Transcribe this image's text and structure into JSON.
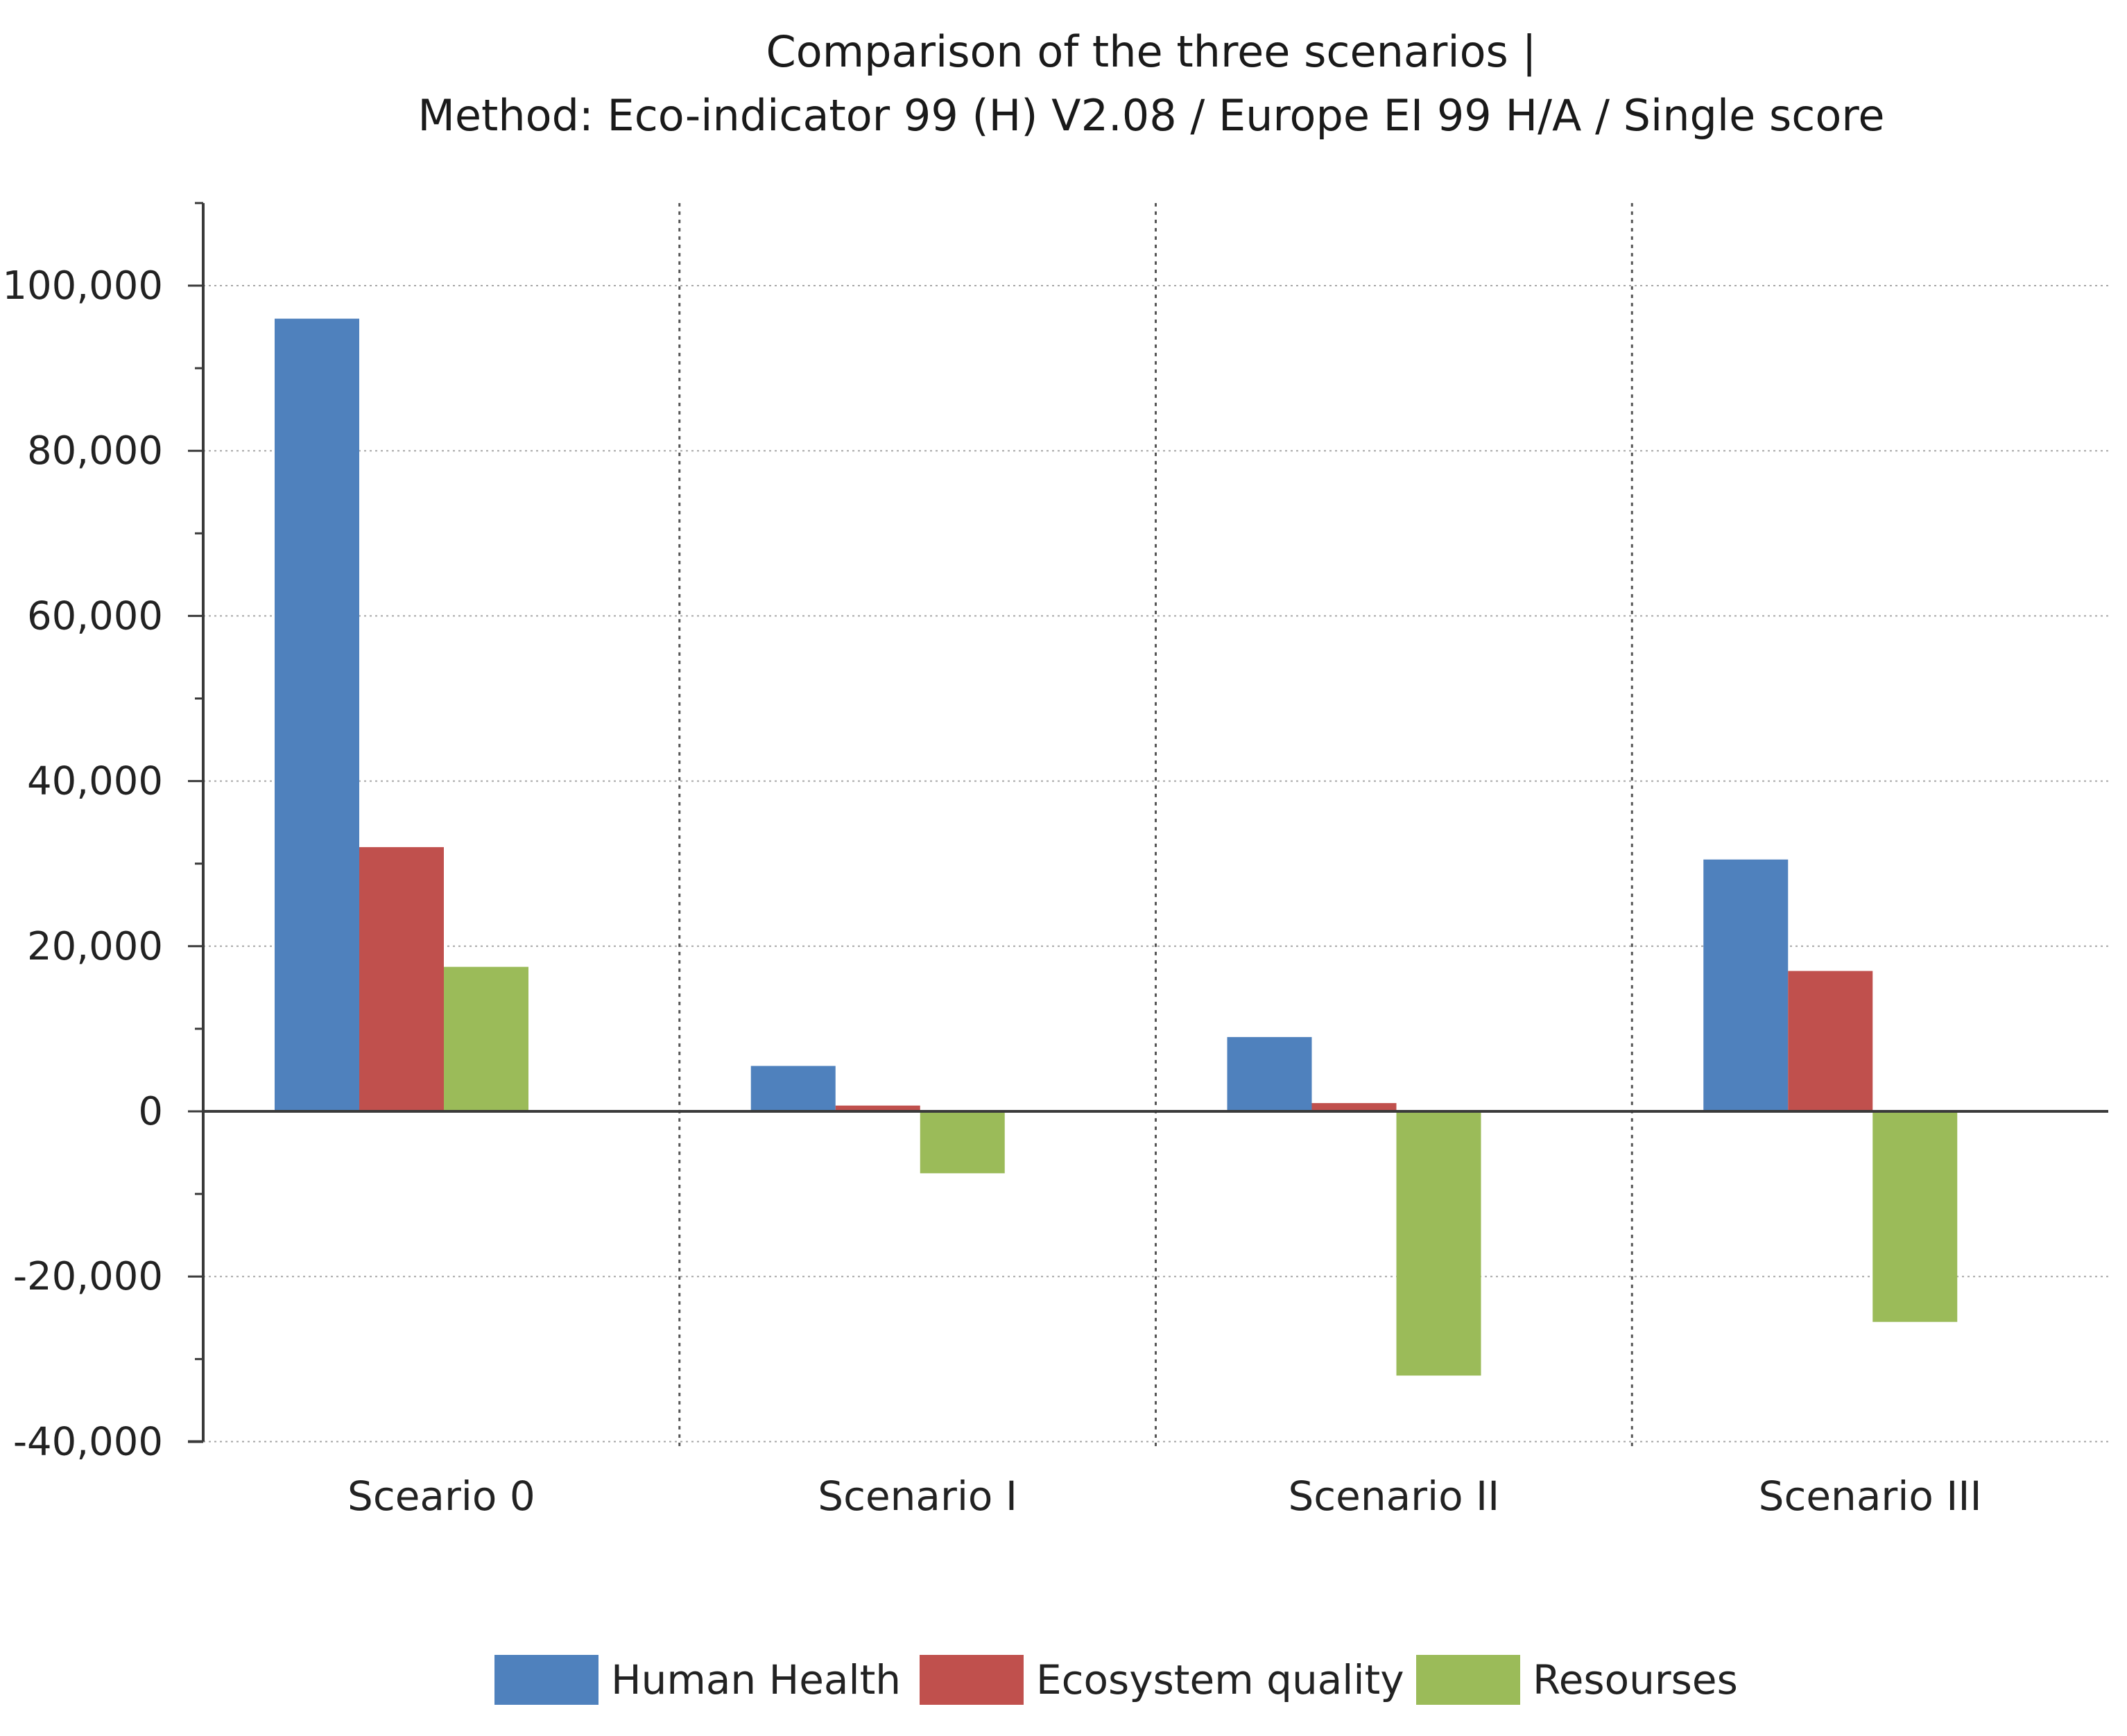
{
  "chart_data": {
    "type": "bar",
    "title": "Comparison of the three scenarios |",
    "subtitle": "Method: Eco-indicator 99 (H) V2.08 / Europe EI 99 H/A / Single score",
    "categories": [
      "Sceario 0",
      "Scenario I",
      "Scenario II",
      "Scenario III"
    ],
    "series": [
      {
        "name": "Human Health",
        "color": "#4f81bd",
        "values": [
          96000,
          5500,
          9000,
          30500
        ]
      },
      {
        "name": "Ecosystem quality",
        "color": "#c0504d",
        "values": [
          32000,
          700,
          1000,
          17000
        ]
      },
      {
        "name": "Resourses",
        "color": "#9bbb59",
        "values": [
          17500,
          -7500,
          -32000,
          -25500
        ]
      }
    ],
    "ylim": [
      -40000,
      110000
    ],
    "yticks": [
      -40000,
      -20000,
      0,
      20000,
      40000,
      60000,
      80000,
      100000
    ],
    "ytick_labels": [
      "-40,000",
      "-20,000",
      "0",
      "20,000",
      "40,000",
      "60,000",
      "80,000",
      "100,000"
    ],
    "xlabel": "",
    "ylabel": "",
    "grid": true,
    "legend_position": "bottom"
  }
}
